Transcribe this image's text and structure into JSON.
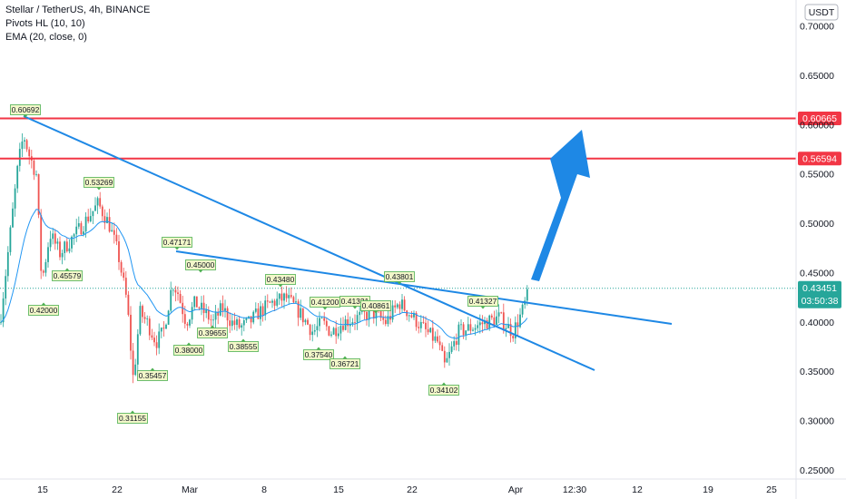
{
  "legend": {
    "symbol_line": "Stellar / TetherUS, 4h, BINANCE",
    "pivots_line": "Pivots HL (10, 10)",
    "ema_line": "EMA (20, close, 0)"
  },
  "currency_badge": "USDT",
  "chart_data": {
    "type": "candlestick",
    "symbol": "Stellar / TetherUS",
    "interval": "4h",
    "exchange": "BINANCE",
    "y_axis": {
      "ticks": [
        "0.70000",
        "0.65000",
        "0.60000",
        "0.55000",
        "0.50000",
        "0.45000",
        "0.40000",
        "0.35000",
        "0.30000",
        "0.25000"
      ],
      "values": [
        0.7,
        0.65,
        0.6,
        0.55,
        0.5,
        0.45,
        0.4,
        0.35,
        0.3,
        0.25
      ],
      "ylim": [
        0.245,
        0.71
      ]
    },
    "x_axis": {
      "ticks": [
        "15",
        "22",
        "Mar",
        "8",
        "15",
        "22",
        "Apr",
        "12:30",
        "12",
        "19",
        "25"
      ]
    },
    "grid": false,
    "horizontal_levels": [
      {
        "value": 0.60665,
        "label": "0.60665",
        "color": "#f23645"
      },
      {
        "value": 0.56594,
        "label": "0.56594",
        "color": "#f23645"
      }
    ],
    "last_price": {
      "value": 0.43451,
      "label": "0.43451",
      "countdown": "03:50:38",
      "color": "#26a69a"
    },
    "pivot_highs": [
      "0.60692",
      "0.53269",
      "0.47171",
      "0.45000",
      "0.43480",
      "0.41200",
      "0.41331",
      "0.40861",
      "0.43801",
      "0.41327"
    ],
    "pivot_lows": [
      "0.42000",
      "0.45579",
      "0.31155",
      "0.35457",
      "0.38000",
      "0.39655",
      "0.38555",
      "0.37540",
      "0.36721",
      "0.34102"
    ],
    "trendlines": [
      {
        "name": "long descending trendline",
        "color": "#1e88e5"
      },
      {
        "name": "upper descending trendline",
        "color": "#1e88e5"
      }
    ],
    "arrow": {
      "direction": "up",
      "color": "#1e88e5"
    },
    "up_color": "#26a69a",
    "down_color": "#ef5350",
    "ema_color": "#2196f3"
  }
}
